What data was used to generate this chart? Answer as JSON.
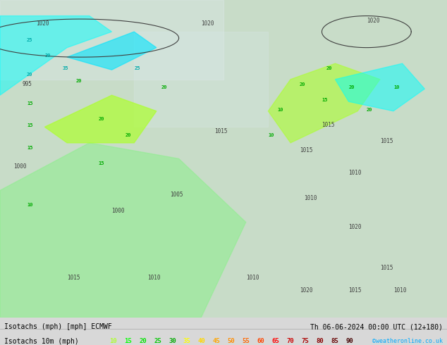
{
  "title_line1": "Isotachs (mph) [mph] ECMWF",
  "title_line1_right": "Th 06-06-2024 00:00 UTC (12+180)",
  "title_line2_left": "Isotachs 10m (mph)",
  "title_line2_right": "©weatheronline.co.uk",
  "legend_values": [
    10,
    15,
    20,
    25,
    30,
    35,
    40,
    45,
    50,
    55,
    60,
    65,
    70,
    75,
    80,
    85,
    90
  ],
  "legend_colors": [
    "#adff2f",
    "#00ff00",
    "#00e400",
    "#00c800",
    "#00aa00",
    "#ffff00",
    "#ffd700",
    "#ffa500",
    "#ff8c00",
    "#ff6600",
    "#ff4500",
    "#ff0000",
    "#cc0000",
    "#aa0000",
    "#880000",
    "#660000",
    "#440000"
  ],
  "bg_color": "#f0f0f0",
  "map_bg": "#c8e6c8",
  "bottom_bar_color": "#222222",
  "bottom_bg": "#000000",
  "figsize": [
    6.34,
    4.9
  ],
  "dpi": 100
}
